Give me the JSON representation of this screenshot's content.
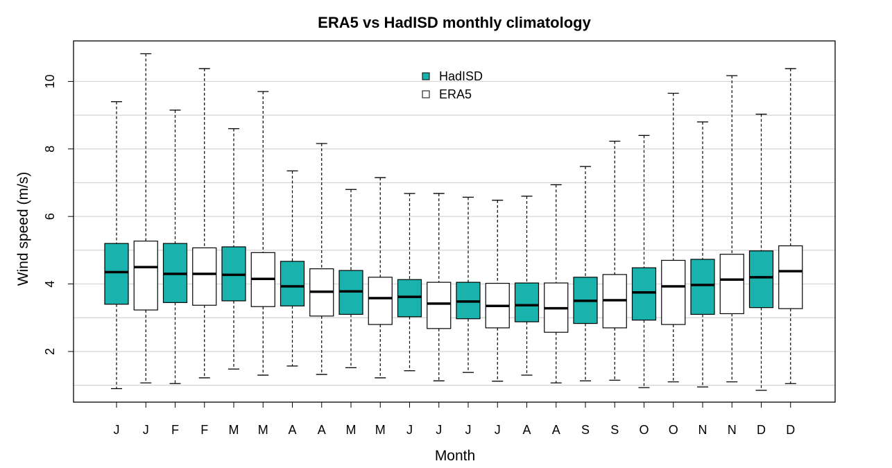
{
  "chart_data": {
    "type": "boxplot",
    "title": "ERA5 vs HadISD monthly climatology",
    "xlabel": "Month",
    "ylabel": "Wind speed (m/s)",
    "ylim": [
      0.5,
      11.2
    ],
    "yticks": [
      2,
      4,
      6,
      8,
      10
    ],
    "gridlines": [
      1,
      2,
      3,
      4,
      5,
      6,
      7,
      8,
      9,
      10
    ],
    "grid": "horizontal",
    "legend_position": "top-center",
    "colors": {
      "HadISD": "#1ab2ac",
      "ERA5": "#ffffff"
    },
    "categories": [
      "J",
      "J",
      "F",
      "F",
      "M",
      "M",
      "A",
      "A",
      "M",
      "M",
      "J",
      "J",
      "J",
      "J",
      "A",
      "A",
      "S",
      "S",
      "O",
      "O",
      "N",
      "N",
      "D",
      "D"
    ],
    "series": [
      {
        "name": "HadISD",
        "boxes": [
          {
            "label": "J",
            "low": 0.9,
            "q1": 3.4,
            "median": 4.35,
            "q3": 5.2,
            "high": 9.4
          },
          {
            "label": "F",
            "low": 1.05,
            "q1": 3.45,
            "median": 4.3,
            "q3": 5.2,
            "high": 9.15
          },
          {
            "label": "M",
            "low": 1.48,
            "q1": 3.5,
            "median": 4.27,
            "q3": 5.1,
            "high": 8.6
          },
          {
            "label": "A",
            "low": 1.57,
            "q1": 3.35,
            "median": 3.93,
            "q3": 4.67,
            "high": 7.35
          },
          {
            "label": "M",
            "low": 1.52,
            "q1": 3.1,
            "median": 3.78,
            "q3": 4.4,
            "high": 6.8
          },
          {
            "label": "J",
            "low": 1.43,
            "q1": 3.03,
            "median": 3.62,
            "q3": 4.13,
            "high": 6.68
          },
          {
            "label": "J",
            "low": 1.38,
            "q1": 2.97,
            "median": 3.48,
            "q3": 4.05,
            "high": 6.57
          },
          {
            "label": "A",
            "low": 1.3,
            "q1": 2.88,
            "median": 3.37,
            "q3": 4.03,
            "high": 6.6
          },
          {
            "label": "S",
            "low": 1.13,
            "q1": 2.83,
            "median": 3.5,
            "q3": 4.2,
            "high": 7.48
          },
          {
            "label": "O",
            "low": 0.93,
            "q1": 2.93,
            "median": 3.75,
            "q3": 4.48,
            "high": 8.4
          },
          {
            "label": "N",
            "low": 0.95,
            "q1": 3.1,
            "median": 3.97,
            "q3": 4.73,
            "high": 8.8
          },
          {
            "label": "D",
            "low": 0.85,
            "q1": 3.3,
            "median": 4.2,
            "q3": 4.98,
            "high": 9.03
          }
        ]
      },
      {
        "name": "ERA5",
        "boxes": [
          {
            "label": "J",
            "low": 1.07,
            "q1": 3.23,
            "median": 4.5,
            "q3": 5.27,
            "high": 10.82
          },
          {
            "label": "F",
            "low": 1.22,
            "q1": 3.37,
            "median": 4.3,
            "q3": 5.07,
            "high": 10.38
          },
          {
            "label": "M",
            "low": 1.3,
            "q1": 3.33,
            "median": 4.15,
            "q3": 4.93,
            "high": 9.7
          },
          {
            "label": "A",
            "low": 1.32,
            "q1": 3.05,
            "median": 3.77,
            "q3": 4.45,
            "high": 8.16
          },
          {
            "label": "M",
            "low": 1.22,
            "q1": 2.8,
            "median": 3.58,
            "q3": 4.2,
            "high": 7.15
          },
          {
            "label": "J",
            "low": 1.13,
            "q1": 2.68,
            "median": 3.42,
            "q3": 4.05,
            "high": 6.68
          },
          {
            "label": "J",
            "low": 1.12,
            "q1": 2.7,
            "median": 3.35,
            "q3": 4.02,
            "high": 6.48
          },
          {
            "label": "A",
            "low": 1.07,
            "q1": 2.57,
            "median": 3.28,
            "q3": 4.03,
            "high": 6.94
          },
          {
            "label": "S",
            "low": 1.15,
            "q1": 2.7,
            "median": 3.52,
            "q3": 4.28,
            "high": 8.23
          },
          {
            "label": "O",
            "low": 1.1,
            "q1": 2.8,
            "median": 3.93,
            "q3": 4.7,
            "high": 9.65
          },
          {
            "label": "N",
            "low": 1.1,
            "q1": 3.12,
            "median": 4.13,
            "q3": 4.88,
            "high": 10.17
          },
          {
            "label": "D",
            "low": 1.05,
            "q1": 3.27,
            "median": 4.38,
            "q3": 5.13,
            "high": 10.38
          }
        ]
      }
    ]
  }
}
